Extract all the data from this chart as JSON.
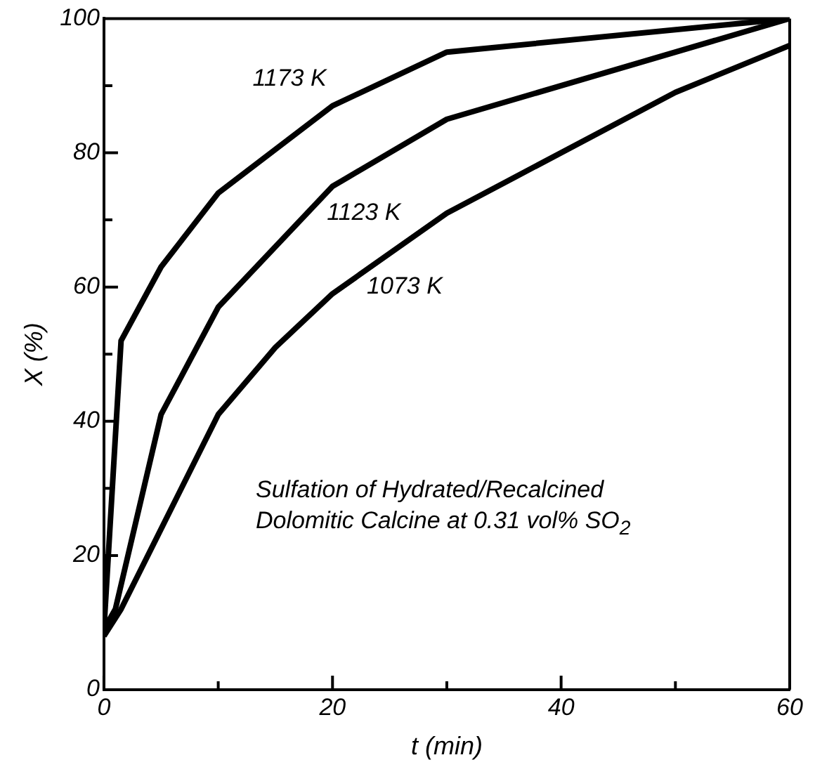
{
  "chart_data": {
    "type": "line",
    "xlabel": "t (min)",
    "ylabel": "X (%)",
    "xlim": [
      0,
      60
    ],
    "ylim": [
      0,
      100
    ],
    "xticks": [
      0,
      {
        "value": 10,
        "label": null
      },
      20,
      {
        "value": 30,
        "label": null
      },
      40,
      {
        "value": 50,
        "label": null
      },
      60
    ],
    "yticks": [
      0,
      {
        "value": 10,
        "label": null
      },
      20,
      {
        "value": 30,
        "label": null
      },
      40,
      {
        "value": 50,
        "label": null
      },
      60,
      {
        "value": 70,
        "label": null
      },
      80,
      {
        "value": 90,
        "label": null
      },
      100
    ],
    "grid": false,
    "legend": false,
    "marker": "none",
    "line_style": "solid",
    "series": [
      {
        "name": "1173 K",
        "color": "#000000",
        "x": [
          0,
          1.5,
          5,
          10,
          20,
          30,
          60
        ],
        "values": [
          9,
          52,
          63,
          74,
          87,
          95,
          100
        ]
      },
      {
        "name": "1123 K",
        "color": "#000000",
        "x": [
          0,
          1,
          5,
          10,
          20,
          30,
          60
        ],
        "values": [
          9,
          12,
          41,
          57,
          75,
          85,
          100
        ]
      },
      {
        "name": "1073 K",
        "color": "#000000",
        "x": [
          0,
          1.5,
          10,
          15,
          20,
          30,
          50,
          60
        ],
        "values": [
          8,
          12,
          41,
          51,
          59,
          71,
          89,
          96
        ]
      }
    ],
    "annotations": [
      "Sulfation of Hydrated/Recalcined Dolomitic Calcine at 0.31 vol% SO$_{2}$"
    ]
  }
}
